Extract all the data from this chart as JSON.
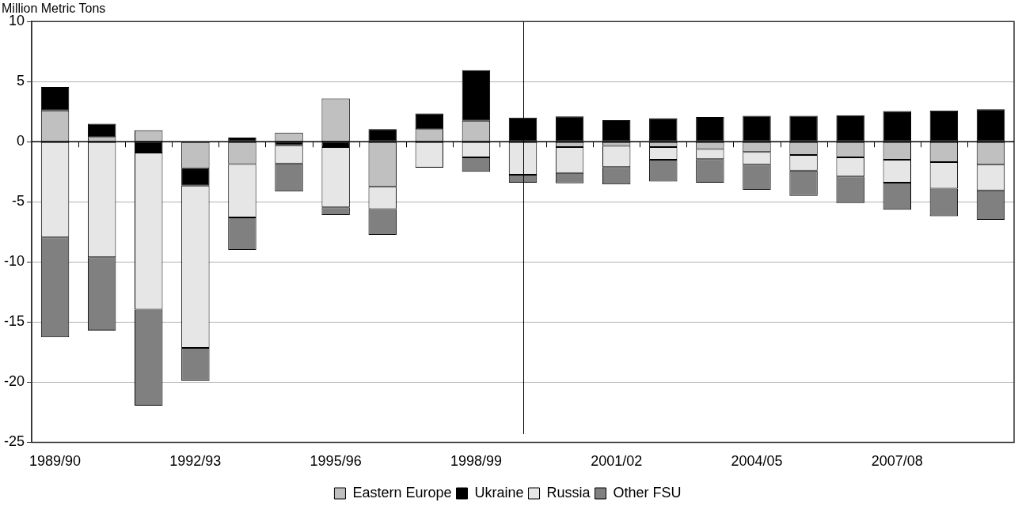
{
  "chart_data": {
    "type": "bar",
    "stacked": true,
    "ylabel": "Million Metric Tons",
    "categories": [
      "1989/90",
      null,
      null,
      "1992/93",
      null,
      null,
      "1995/96",
      null,
      null,
      "1998/99",
      null,
      null,
      "2001/02",
      null,
      null,
      "2004/05",
      null,
      null,
      "2007/08",
      null,
      null
    ],
    "series": [
      {
        "name": "Eastern Europe",
        "color": "#c0c0c0",
        "values": [
          2.6,
          0.4,
          0.95,
          -2.2,
          -1.85,
          0.75,
          3.6,
          -3.75,
          1.05,
          1.75,
          0,
          -0.45,
          -0.35,
          -0.45,
          -0.6,
          -0.85,
          -1.1,
          -1.3,
          -1.5,
          -1.7,
          -1.9
        ]
      },
      {
        "name": "Ukraine",
        "color": "#000000",
        "values": [
          1.95,
          1.1,
          -0.9,
          -1.45,
          0.35,
          -0.3,
          -0.45,
          1.05,
          1.3,
          4.2,
          2.0,
          2.1,
          1.8,
          1.95,
          2.05,
          2.15,
          2.15,
          2.2,
          2.55,
          2.6,
          2.7
        ]
      },
      {
        "name": "Russia",
        "color": "#e6e6e6",
        "values": [
          -7.95,
          -9.6,
          -13.05,
          -13.5,
          -4.45,
          -1.5,
          -5.0,
          -1.85,
          -2.15,
          -1.3,
          -2.75,
          -2.15,
          -1.75,
          -1.05,
          -0.85,
          -1.05,
          -1.3,
          -1.6,
          -1.9,
          -2.2,
          -2.15
        ]
      },
      {
        "name": "Other FSU",
        "color": "#808080",
        "values": [
          -8.3,
          -6.1,
          -8.0,
          -2.75,
          -2.7,
          -2.35,
          -0.65,
          -2.15,
          0,
          -1.2,
          -0.65,
          -0.85,
          -1.45,
          -1.8,
          -1.95,
          -2.1,
          -2.1,
          -2.2,
          -2.25,
          -2.3,
          -2.45
        ]
      }
    ],
    "ylim": [
      -25,
      10
    ],
    "yticks": [
      -25,
      -20,
      -15,
      -10,
      -5,
      0,
      5,
      10
    ],
    "grid": "y",
    "legend": "bottom"
  }
}
